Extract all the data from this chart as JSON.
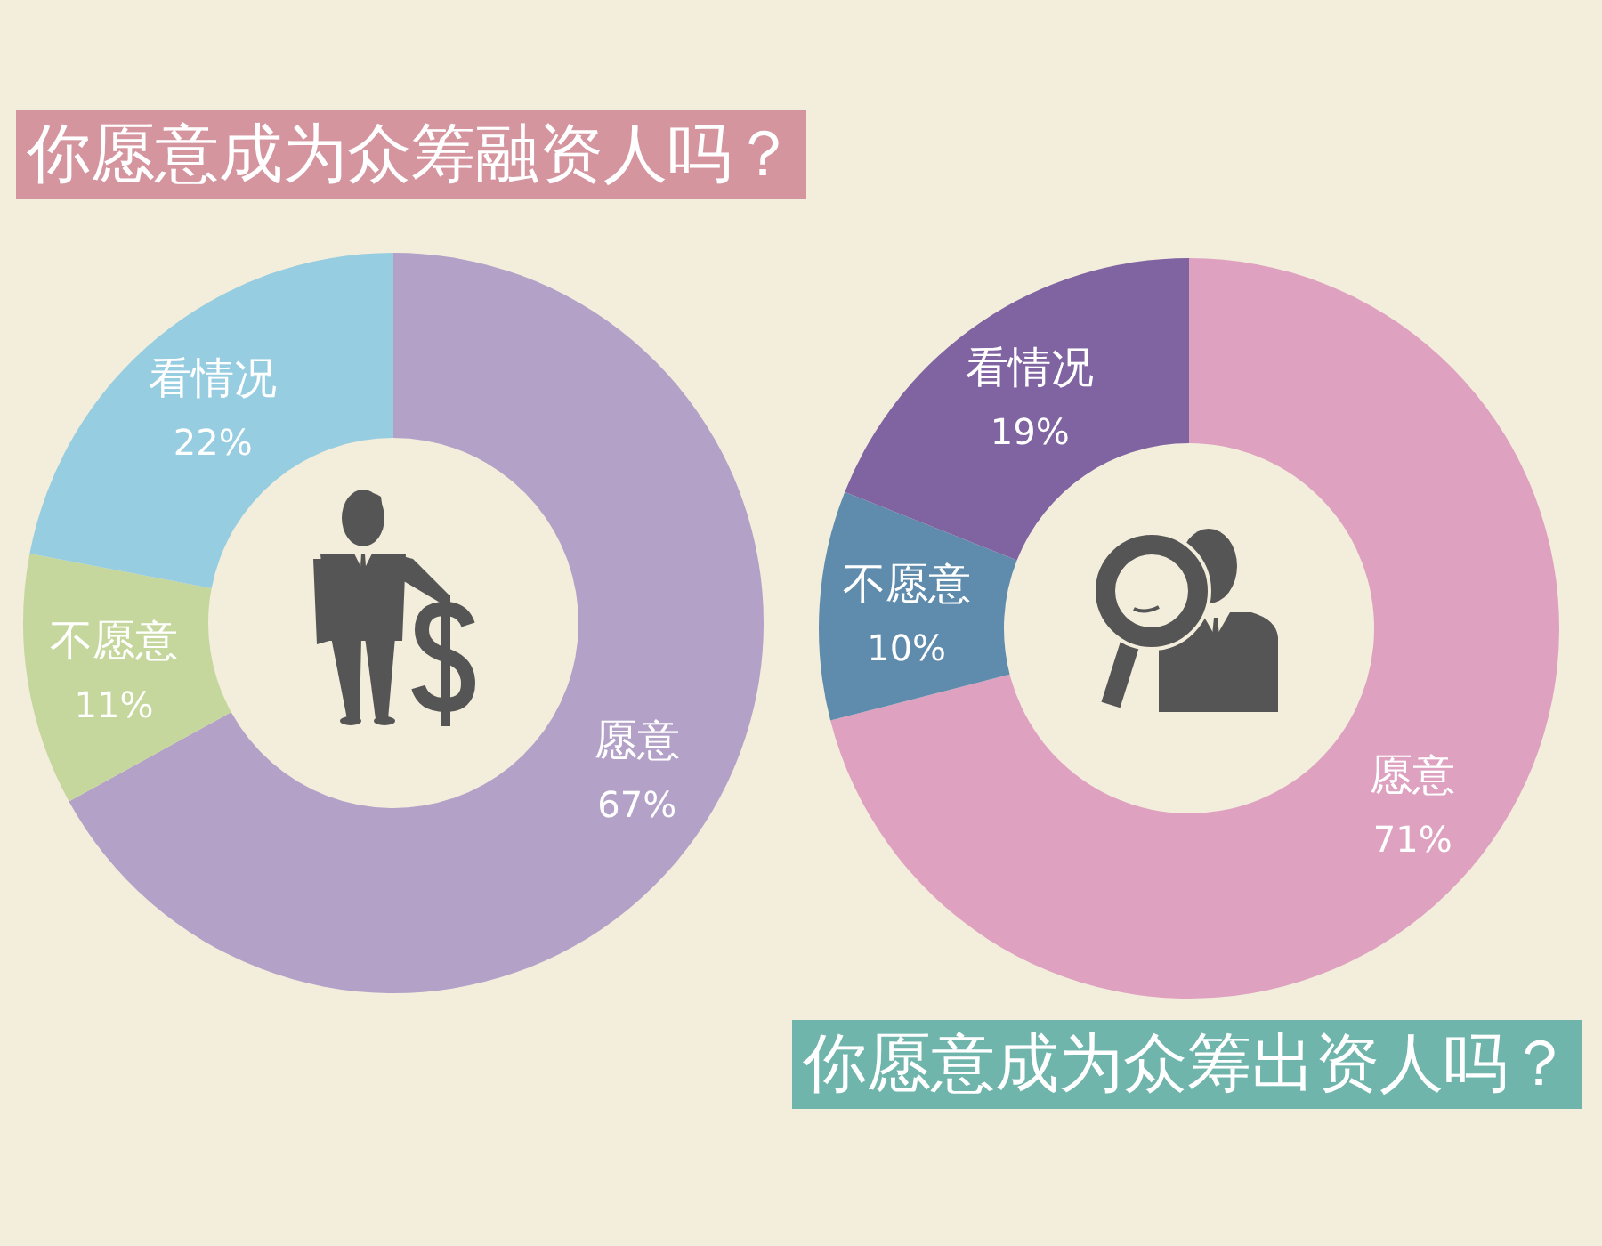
{
  "chart_data": [
    {
      "type": "donut",
      "title": "你愿意成为众筹融资人吗？",
      "categories": [
        "愿意",
        "不愿意",
        "看情况"
      ],
      "values": [
        67,
        11,
        22
      ],
      "colors": [
        "#b3a1c8",
        "#c5d79c",
        "#96cde0"
      ],
      "value_labels": [
        "67%",
        "11%",
        "22%"
      ]
    },
    {
      "type": "donut",
      "title": "你愿意成为众筹出资人吗？",
      "categories": [
        "愿意",
        "不愿意",
        "看情况"
      ],
      "values": [
        71,
        10,
        19
      ],
      "colors": [
        "#dea2c0",
        "#5f8cad",
        "#8064a2"
      ],
      "value_labels": [
        "71%",
        "10%",
        "19%"
      ]
    }
  ]
}
